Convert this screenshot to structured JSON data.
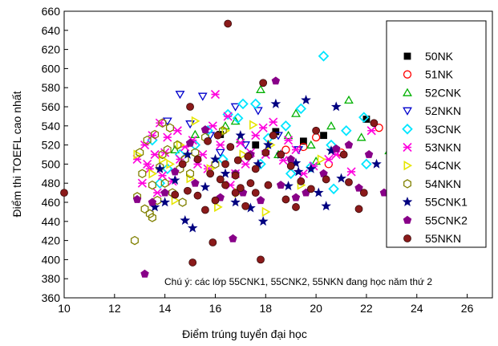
{
  "chart_data": {
    "type": "scatter",
    "xlabel": "Điểm trúng tuyển  đại học",
    "ylabel": "Điểm thi TOEFL cao nhất",
    "xlim": [
      10,
      27
    ],
    "ylim": [
      360,
      660
    ],
    "xticks": [
      10,
      12,
      14,
      16,
      18,
      20,
      22,
      24,
      26
    ],
    "yticks": [
      360,
      380,
      400,
      420,
      440,
      460,
      480,
      500,
      520,
      540,
      560,
      580,
      600,
      620,
      640,
      660
    ],
    "grid": false,
    "legend_position": "right",
    "annotation": "Chú ý: các lớp 55CNK1, 55CNK2, 55NKN đang học năm thứ 2",
    "series": [
      {
        "name": "50NK",
        "marker": "square-filled",
        "color": "#000000",
        "points": [
          [
            16.2,
            531
          ],
          [
            17.6,
            520
          ],
          [
            19.5,
            524
          ],
          [
            20.3,
            530
          ],
          [
            22.0,
            547
          ],
          [
            18.4,
            534
          ]
        ]
      },
      {
        "name": "51NK",
        "marker": "circle-open",
        "color": "#ff0000",
        "points": [
          [
            24.2,
            597
          ],
          [
            20.5,
            500
          ],
          [
            21.0,
            512
          ],
          [
            19.5,
            518
          ],
          [
            22.5,
            538
          ],
          [
            20.0,
            528
          ],
          [
            18.8,
            515
          ]
        ]
      },
      {
        "name": "52CNK",
        "marker": "triangle-up-open",
        "color": "#00b000",
        "points": [
          [
            17.8,
            578
          ],
          [
            21.3,
            567
          ],
          [
            20.6,
            540
          ],
          [
            19.8,
            520
          ],
          [
            18.9,
            530
          ],
          [
            22.9,
            514
          ],
          [
            16.4,
            540
          ],
          [
            17.0,
            526
          ],
          [
            15.2,
            531
          ],
          [
            14.4,
            515
          ],
          [
            18.5,
            510
          ],
          [
            21.8,
            528
          ],
          [
            19.2,
            553
          ],
          [
            16.8,
            545
          ],
          [
            20.0,
            503
          ]
        ]
      },
      {
        "name": "52NKN",
        "marker": "triangle-down-open",
        "color": "#0000cc",
        "points": [
          [
            14.6,
            573
          ],
          [
            15.5,
            571
          ],
          [
            16.8,
            560
          ],
          [
            17.7,
            556
          ],
          [
            18.5,
            530
          ],
          [
            15.0,
            542
          ],
          [
            16.2,
            512
          ],
          [
            14.1,
            545
          ],
          [
            19.3,
            515
          ],
          [
            17.2,
            520
          ],
          [
            15.8,
            530
          ]
        ]
      },
      {
        "name": "53CNK",
        "marker": "diamond-open",
        "color": "#00e5ff",
        "points": [
          [
            20.3,
            613
          ],
          [
            17.1,
            563
          ],
          [
            17.6,
            563
          ],
          [
            21.9,
            549
          ],
          [
            19.4,
            558
          ],
          [
            21.2,
            535
          ],
          [
            18.8,
            540
          ],
          [
            16.5,
            552
          ],
          [
            15.2,
            520
          ],
          [
            14.6,
            510
          ],
          [
            19.8,
            497
          ],
          [
            22.0,
            500
          ],
          [
            20.7,
            474
          ],
          [
            13.8,
            480
          ],
          [
            16.9,
            548
          ],
          [
            18.1,
            527
          ],
          [
            15.7,
            535
          ],
          [
            17.8,
            500
          ],
          [
            20.6,
            520
          ],
          [
            16.3,
            505
          ],
          [
            19.0,
            490
          ],
          [
            14.1,
            495
          ],
          [
            13.5,
            525
          ]
        ]
      },
      {
        "name": "53NKN",
        "marker": "star-x",
        "color": "#ff00dd",
        "points": [
          [
            13.2,
            520
          ],
          [
            13.5,
            530
          ],
          [
            13.8,
            543
          ],
          [
            14.1,
            528
          ],
          [
            13.6,
            510
          ],
          [
            14.5,
            535
          ],
          [
            13.3,
            500
          ],
          [
            14.8,
            518
          ],
          [
            15.1,
            525
          ],
          [
            15.5,
            510
          ],
          [
            16.0,
            573
          ],
          [
            16.5,
            550
          ],
          [
            17.0,
            522
          ],
          [
            17.4,
            512
          ],
          [
            17.9,
            538
          ],
          [
            18.3,
            544
          ],
          [
            18.7,
            504
          ],
          [
            19.2,
            515
          ],
          [
            19.9,
            498
          ],
          [
            20.5,
            505
          ],
          [
            14.0,
            512
          ],
          [
            13.9,
            488
          ],
          [
            15.7,
            495
          ],
          [
            16.8,
            490
          ],
          [
            13.1,
            480
          ],
          [
            14.3,
            482
          ],
          [
            17.6,
            530
          ],
          [
            15.9,
            540
          ],
          [
            18.0,
            510
          ],
          [
            19.5,
            490
          ],
          [
            22.2,
            535
          ],
          [
            20.8,
            510
          ],
          [
            16.2,
            520
          ],
          [
            15.3,
            500
          ],
          [
            14.6,
            505
          ],
          [
            13.4,
            495
          ],
          [
            13.7,
            470
          ],
          [
            12.9,
            505
          ],
          [
            21.4,
            492
          ],
          [
            18.9,
            525
          ],
          [
            17.2,
            500
          ],
          [
            16.6,
            478
          ]
        ]
      },
      {
        "name": "54CNK",
        "marker": "triangle-right-open",
        "color": "#e6e600",
        "points": [
          [
            24.0,
            561
          ],
          [
            17.5,
            541
          ],
          [
            15.2,
            545
          ],
          [
            14.6,
            520
          ],
          [
            13.9,
            505
          ],
          [
            16.4,
            535
          ],
          [
            18.2,
            520
          ],
          [
            17.1,
            510
          ],
          [
            14.2,
            500
          ],
          [
            15.8,
            495
          ],
          [
            16.9,
            470
          ],
          [
            13.5,
            490
          ],
          [
            12.9,
            510
          ],
          [
            15.0,
            485
          ],
          [
            18.0,
            450
          ],
          [
            14.4,
            462
          ],
          [
            16.1,
            455
          ],
          [
            19.4,
            478
          ],
          [
            20.2,
            505
          ]
        ]
      },
      {
        "name": "54NKN",
        "marker": "hexagon-open",
        "color": "#808000",
        "points": [
          [
            12.8,
            420
          ],
          [
            13.2,
            453
          ],
          [
            13.5,
            444
          ],
          [
            13.0,
            512
          ],
          [
            13.3,
            525
          ],
          [
            13.6,
            531
          ],
          [
            13.9,
            543
          ],
          [
            14.2,
            538
          ],
          [
            14.5,
            520
          ],
          [
            14.8,
            505
          ],
          [
            13.8,
            497
          ],
          [
            13.1,
            490
          ],
          [
            14.0,
            480
          ],
          [
            14.3,
            470
          ],
          [
            13.7,
            462
          ],
          [
            13.4,
            448
          ],
          [
            15.2,
            512
          ],
          [
            15.6,
            528
          ],
          [
            16.0,
            500
          ],
          [
            14.6,
            495
          ],
          [
            13.5,
            478
          ],
          [
            12.9,
            466
          ],
          [
            14.1,
            515
          ],
          [
            15.0,
            490
          ],
          [
            13.9,
            510
          ],
          [
            16.3,
            535
          ],
          [
            14.7,
            460
          ]
        ]
      },
      {
        "name": "55CNK1",
        "marker": "star-filled",
        "color": "#000080",
        "points": [
          [
            24.5,
            503
          ],
          [
            19.6,
            567
          ],
          [
            20.8,
            560
          ],
          [
            18.4,
            563
          ],
          [
            17.0,
            530
          ],
          [
            18.1,
            520
          ],
          [
            16.0,
            505
          ],
          [
            19.3,
            492
          ],
          [
            19.8,
            495
          ],
          [
            20.4,
            456
          ],
          [
            18.9,
            477
          ],
          [
            21.0,
            485
          ],
          [
            13.8,
            495
          ],
          [
            14.4,
            483
          ],
          [
            14.0,
            460
          ],
          [
            15.1,
            433
          ],
          [
            14.8,
            441
          ],
          [
            16.8,
            460
          ],
          [
            17.4,
            454
          ],
          [
            17.9,
            440
          ],
          [
            15.6,
            476
          ],
          [
            18.6,
            510
          ],
          [
            19.2,
            501
          ],
          [
            20.1,
            470
          ],
          [
            20.6,
            514
          ],
          [
            23.1,
            505
          ],
          [
            14.9,
            510
          ],
          [
            16.4,
            490
          ],
          [
            17.7,
            500
          ],
          [
            22.4,
            500
          ],
          [
            13.6,
            455
          ]
        ]
      },
      {
        "name": "55CNK2",
        "marker": "pentagon-filled",
        "color": "#880088",
        "points": [
          [
            13.2,
            385
          ],
          [
            16.7,
            422
          ],
          [
            12.9,
            463
          ],
          [
            13.5,
            460
          ],
          [
            14.4,
            492
          ],
          [
            15.0,
            522
          ],
          [
            15.6,
            536
          ],
          [
            16.2,
            465
          ],
          [
            17.1,
            470
          ],
          [
            17.8,
            462
          ],
          [
            18.4,
            587
          ],
          [
            19.0,
            505
          ],
          [
            19.6,
            470
          ],
          [
            20.3,
            490
          ],
          [
            20.8,
            516
          ],
          [
            21.3,
            520
          ],
          [
            21.7,
            475
          ],
          [
            22.1,
            510
          ],
          [
            22.7,
            470
          ],
          [
            24.2,
            484
          ],
          [
            24.8,
            481
          ],
          [
            15.2,
            480
          ],
          [
            14.0,
            470
          ],
          [
            16.8,
            490
          ],
          [
            17.4,
            510
          ],
          [
            18.6,
            478
          ],
          [
            19.2,
            465
          ]
        ]
      },
      {
        "name": "55NKN",
        "marker": "circle-filled",
        "color": "#8b1a1a",
        "points": [
          [
            10.0,
            470
          ],
          [
            16.5,
            647
          ],
          [
            15.0,
            560
          ],
          [
            15.1,
            397
          ],
          [
            15.9,
            418
          ],
          [
            17.8,
            400
          ],
          [
            15.7,
            524
          ],
          [
            16.1,
            530
          ],
          [
            16.6,
            518
          ],
          [
            16.9,
            504
          ],
          [
            17.3,
            508
          ],
          [
            17.6,
            495
          ],
          [
            18.0,
            512
          ],
          [
            18.6,
            510
          ],
          [
            19.0,
            498
          ],
          [
            19.4,
            482
          ],
          [
            19.8,
            474
          ],
          [
            20.4,
            484
          ],
          [
            21.3,
            481
          ],
          [
            21.7,
            453
          ],
          [
            21.9,
            470
          ],
          [
            22.3,
            543
          ],
          [
            23.0,
            462
          ],
          [
            14.4,
            468
          ],
          [
            14.9,
            472
          ],
          [
            15.3,
            467
          ],
          [
            15.6,
            452
          ],
          [
            16.0,
            462
          ],
          [
            16.4,
            478
          ],
          [
            16.8,
            488
          ],
          [
            17.2,
            456
          ],
          [
            17.6,
            470
          ],
          [
            17.9,
            585
          ],
          [
            18.3,
            530
          ],
          [
            18.8,
            463
          ],
          [
            19.2,
            455
          ],
          [
            15.3,
            505
          ],
          [
            14.7,
            500
          ],
          [
            16.2,
            484
          ],
          [
            16.8,
            470
          ],
          [
            17.4,
            480
          ],
          [
            18.1,
            478
          ],
          [
            20.0,
            535
          ],
          [
            21.1,
            510
          ],
          [
            15.8,
            490
          ],
          [
            16.4,
            500
          ],
          [
            17.0,
            475
          ]
        ]
      }
    ]
  }
}
